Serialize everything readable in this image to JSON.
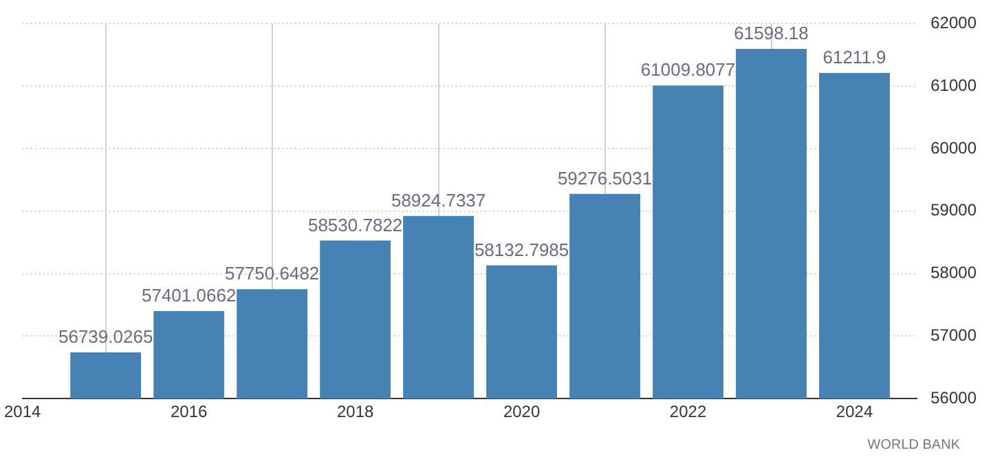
{
  "chart_data": {
    "type": "bar",
    "x": [
      2015,
      2016,
      2017,
      2018,
      2019,
      2020,
      2021,
      2022,
      2023,
      2024
    ],
    "values": [
      56739.0265,
      57401.0662,
      57750.6482,
      58530.7822,
      58924.7337,
      58132.7985,
      59276.5031,
      61009.8077,
      61598.18,
      61211.9
    ],
    "color": "#4682b4",
    "xlim": [
      2014,
      2024.75
    ],
    "xticks": [
      2014,
      2016,
      2018,
      2020,
      2022,
      2024
    ],
    "ylim": [
      56000,
      62000
    ],
    "yticks": [
      56000,
      57000,
      58000,
      59000,
      60000,
      61000,
      62000
    ],
    "grid": true,
    "data_labels": true,
    "annotations": [
      "WORLD BANK"
    ]
  }
}
